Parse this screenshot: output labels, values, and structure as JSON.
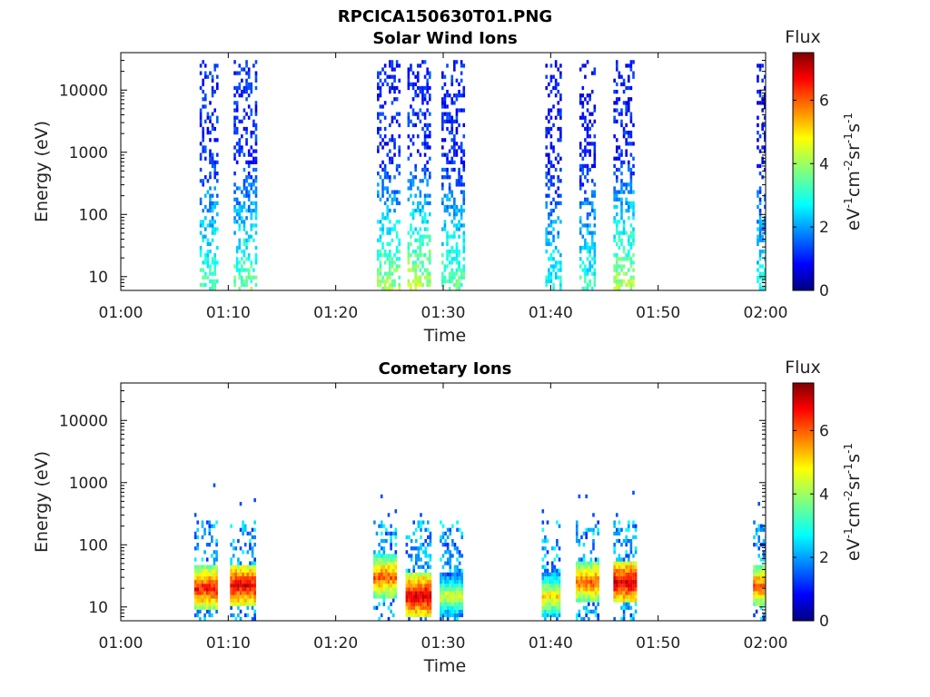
{
  "figure": {
    "title": "RPCICA150630T01.PNG"
  },
  "colorbar": {
    "label": "Flux",
    "unit_main": "eV",
    "unit_parts": [
      {
        "b": "eV",
        "s": "-1"
      },
      {
        "b": "cm",
        "s": "-2"
      },
      {
        "b": "sr",
        "s": "-1"
      },
      {
        "b": "s",
        "s": "-1"
      }
    ],
    "range": [
      0,
      7.5
    ],
    "ticks": [
      "0",
      "2",
      "4",
      "6"
    ],
    "colormap": "jet"
  },
  "chart_data": [
    {
      "type": "heatmap",
      "title": "Solar Wind Ions",
      "xlabel": "Time",
      "ylabel": "Energy (eV)",
      "x_range": [
        "01:00",
        "02:00"
      ],
      "x_ticks": [
        "01:00",
        "01:10",
        "01:20",
        "01:30",
        "01:40",
        "01:50",
        "02:00"
      ],
      "y_scale": "log",
      "y_range": [
        6,
        40000
      ],
      "y_ticks": [
        "10",
        "100",
        "1000",
        "10000"
      ],
      "grid": false,
      "bursts": [
        {
          "start": "01:07:20",
          "end": "01:09:00",
          "flux_low_energy": 3.4,
          "flux_high_energy": 1.2
        },
        {
          "start": "01:10:30",
          "end": "01:12:30",
          "flux_low_energy": 3.6,
          "flux_high_energy": 1.2
        },
        {
          "start": "01:23:50",
          "end": "01:25:50",
          "flux_low_energy": 4.0,
          "flux_high_energy": 1.1
        },
        {
          "start": "01:26:40",
          "end": "01:28:50",
          "flux_low_energy": 4.2,
          "flux_high_energy": 1.2
        },
        {
          "start": "01:29:50",
          "end": "01:31:50",
          "flux_low_energy": 3.6,
          "flux_high_energy": 1.1
        },
        {
          "start": "01:39:30",
          "end": "01:41:00",
          "flux_low_energy": 3.0,
          "flux_high_energy": 1.0
        },
        {
          "start": "01:42:40",
          "end": "01:44:10",
          "flux_low_energy": 3.2,
          "flux_high_energy": 1.0
        },
        {
          "start": "01:45:50",
          "end": "01:47:40",
          "flux_low_energy": 4.2,
          "flux_high_energy": 1.1
        },
        {
          "start": "01:59:10",
          "end": "02:00:40",
          "flux_low_energy": 3.0,
          "flux_high_energy": 1.0
        }
      ]
    },
    {
      "type": "heatmap",
      "title": "Cometary Ions",
      "xlabel": "Time",
      "ylabel": "Energy (eV)",
      "x_range": [
        "01:00",
        "02:00"
      ],
      "x_ticks": [
        "01:00",
        "01:10",
        "01:20",
        "01:30",
        "01:40",
        "01:50",
        "02:00"
      ],
      "y_scale": "log",
      "y_range": [
        6,
        40000
      ],
      "y_ticks": [
        "10",
        "100",
        "1000",
        "10000"
      ],
      "grid": false,
      "bursts": [
        {
          "start": "01:06:50",
          "end": "01:08:50",
          "peak_energy_eV": 20,
          "peak_flux": 6.5
        },
        {
          "start": "01:10:10",
          "end": "01:12:30",
          "peak_energy_eV": 22,
          "peak_flux": 6.8
        },
        {
          "start": "01:23:30",
          "end": "01:25:40",
          "peak_energy_eV": 30,
          "peak_flux": 6.0
        },
        {
          "start": "01:26:30",
          "end": "01:28:50",
          "peak_energy_eV": 15,
          "peak_flux": 7.0
        },
        {
          "start": "01:29:40",
          "end": "01:31:50",
          "peak_energy_eV": 15,
          "peak_flux": 4.5
        },
        {
          "start": "01:39:10",
          "end": "01:40:50",
          "peak_energy_eV": 15,
          "peak_flux": 5.0
        },
        {
          "start": "01:42:20",
          "end": "01:44:30",
          "peak_energy_eV": 25,
          "peak_flux": 6.0
        },
        {
          "start": "01:45:50",
          "end": "01:47:50",
          "peak_energy_eV": 25,
          "peak_flux": 7.0
        },
        {
          "start": "01:58:50",
          "end": "02:00:50",
          "peak_energy_eV": 22,
          "peak_flux": 6.0
        }
      ]
    }
  ]
}
